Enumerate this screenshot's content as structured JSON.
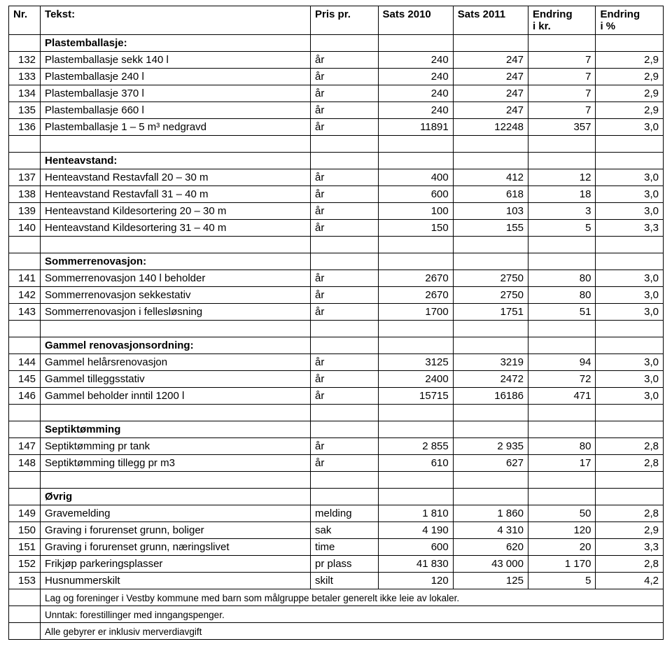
{
  "headers": {
    "nr": "Nr.",
    "tekst": "Tekst:",
    "pris": "Pris pr.",
    "s2010": "Sats 2010",
    "s2011": "Sats 2011",
    "endr_kr_l1": "Endring",
    "endr_kr_l2": "i kr.",
    "endr_pct_l1": "Endring",
    "endr_pct_l2": "i %"
  },
  "sections": [
    {
      "heading": "Plastemballasje:",
      "rows": [
        {
          "nr": "132",
          "txt": "Plastemballasje sekk 140 l",
          "pris": "år",
          "s10": "240",
          "s11": "247",
          "ekr": "7",
          "epct": "2,9"
        },
        {
          "nr": "133",
          "txt": "Plastemballasje 240 l",
          "pris": "år",
          "s10": "240",
          "s11": "247",
          "ekr": "7",
          "epct": "2,9"
        },
        {
          "nr": "134",
          "txt": "Plastemballasje 370 l",
          "pris": "år",
          "s10": "240",
          "s11": "247",
          "ekr": "7",
          "epct": "2,9"
        },
        {
          "nr": "135",
          "txt": "Plastemballasje 660 l",
          "pris": "år",
          "s10": "240",
          "s11": "247",
          "ekr": "7",
          "epct": "2,9"
        },
        {
          "nr": "136",
          "txt": "Plastemballasje 1 – 5 m³ nedgravd",
          "pris": "år",
          "s10": "11891",
          "s11": "12248",
          "ekr": "357",
          "epct": "3,0"
        }
      ]
    },
    {
      "spacer": true,
      "heading": "Henteavstand:",
      "rows": [
        {
          "nr": "137",
          "txt": "Henteavstand Restavfall 20 – 30 m",
          "pris": "år",
          "s10": "400",
          "s11": "412",
          "ekr": "12",
          "epct": "3,0"
        },
        {
          "nr": "138",
          "txt": "Henteavstand Restavfall 31 – 40 m",
          "pris": "år",
          "s10": "600",
          "s11": "618",
          "ekr": "18",
          "epct": "3,0"
        },
        {
          "nr": "139",
          "txt": "Henteavstand Kildesortering 20 – 30 m",
          "pris": "år",
          "s10": "100",
          "s11": "103",
          "ekr": "3",
          "epct": "3,0"
        },
        {
          "nr": "140",
          "txt": "Henteavstand Kildesortering 31 – 40 m",
          "pris": "år",
          "s10": "150",
          "s11": "155",
          "ekr": "5",
          "epct": "3,3"
        }
      ]
    },
    {
      "spacer": true,
      "heading": "Sommerrenovasjon:",
      "rows": [
        {
          "nr": "141",
          "txt": "Sommerrenovasjon 140 l beholder",
          "pris": "år",
          "s10": "2670",
          "s11": "2750",
          "ekr": "80",
          "epct": "3,0"
        },
        {
          "nr": "142",
          "txt": "Sommerrenovasjon sekkestativ",
          "pris": "år",
          "s10": "2670",
          "s11": "2750",
          "ekr": "80",
          "epct": "3,0"
        },
        {
          "nr": "143",
          "txt": "Sommerrenovasjon i fellesløsning",
          "pris": "år",
          "s10": "1700",
          "s11": "1751",
          "ekr": "51",
          "epct": "3,0"
        }
      ]
    },
    {
      "spacer": true,
      "heading": "Gammel renovasjonsordning:",
      "rows": [
        {
          "nr": "144",
          "txt": "Gammel helårsrenovasjon",
          "pris": "år",
          "s10": "3125",
          "s11": "3219",
          "ekr": "94",
          "epct": "3,0"
        },
        {
          "nr": "145",
          "txt": "Gammel tilleggsstativ",
          "pris": "år",
          "s10": "2400",
          "s11": "2472",
          "ekr": "72",
          "epct": "3,0"
        },
        {
          "nr": "146",
          "txt": "Gammel beholder inntil 1200 l",
          "pris": "år",
          "s10": "15715",
          "s11": "16186",
          "ekr": "471",
          "epct": "3,0"
        }
      ]
    },
    {
      "spacer": true,
      "heading": "Septiktømming",
      "rows": [
        {
          "nr": "147",
          "txt": "Septiktømming pr tank",
          "pris": "år",
          "s10": "2 855",
          "s11": "2 935",
          "ekr": "80",
          "epct": "2,8"
        },
        {
          "nr": "148",
          "txt": "Septiktømming tillegg pr m3",
          "pris": "år",
          "s10": "610",
          "s11": "627",
          "ekr": "17",
          "epct": "2,8"
        }
      ]
    },
    {
      "spacer": true,
      "heading": "Øvrig",
      "rows": [
        {
          "nr": "149",
          "txt": "Gravemelding",
          "pris": "melding",
          "s10": "1 810",
          "s11": "1 860",
          "ekr": "50",
          "epct": "2,8"
        },
        {
          "nr": "150",
          "txt": "Graving i forurenset grunn, boliger",
          "pris": "sak",
          "s10": "4 190",
          "s11": "4 310",
          "ekr": "120",
          "epct": "2,9"
        },
        {
          "nr": "151",
          "txt": "Graving i forurenset grunn, næringslivet",
          "pris": "time",
          "s10": "600",
          "s11": "620",
          "ekr": "20",
          "epct": "3,3"
        },
        {
          "nr": "152",
          "txt": "Frikjøp parkeringsplasser",
          "pris": "pr plass",
          "s10": "41 830",
          "s11": "43 000",
          "ekr": "1 170",
          "epct": "2,8"
        },
        {
          "nr": "153",
          "txt": "Husnummerskilt",
          "pris": "skilt",
          "s10": "120",
          "s11": "125",
          "ekr": "5",
          "epct": "4,2"
        }
      ]
    }
  ],
  "notes": [
    "Lag og foreninger i Vestby kommune med barn som målgruppe betaler generelt ikke leie av lokaler.",
    "Unntak: forestillinger med inngangspenger.",
    "Alle gebyrer er inklusiv merverdiavgift"
  ]
}
